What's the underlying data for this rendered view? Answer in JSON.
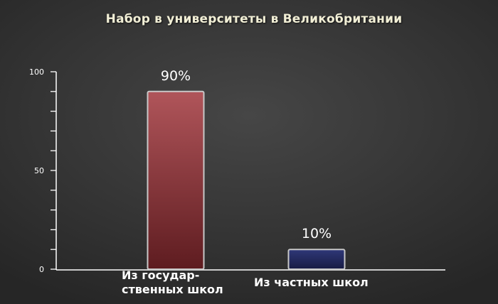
{
  "chart_data": {
    "type": "bar",
    "title": "Набор в университеты в Великобритании",
    "categories": [
      "Из государ-\nственных школ",
      "Из частных школ"
    ],
    "values": [
      90,
      10
    ],
    "data_labels": [
      "90%",
      "10%"
    ],
    "colors": [
      "#8a2e30",
      "#23285e"
    ],
    "ylim": [
      0,
      100
    ],
    "yticks": [
      0,
      50,
      100
    ],
    "ytick_labels": [
      "0",
      "50",
      "100"
    ],
    "minor_tick_step": 10,
    "grid": false,
    "xlabel": "",
    "ylabel": ""
  }
}
